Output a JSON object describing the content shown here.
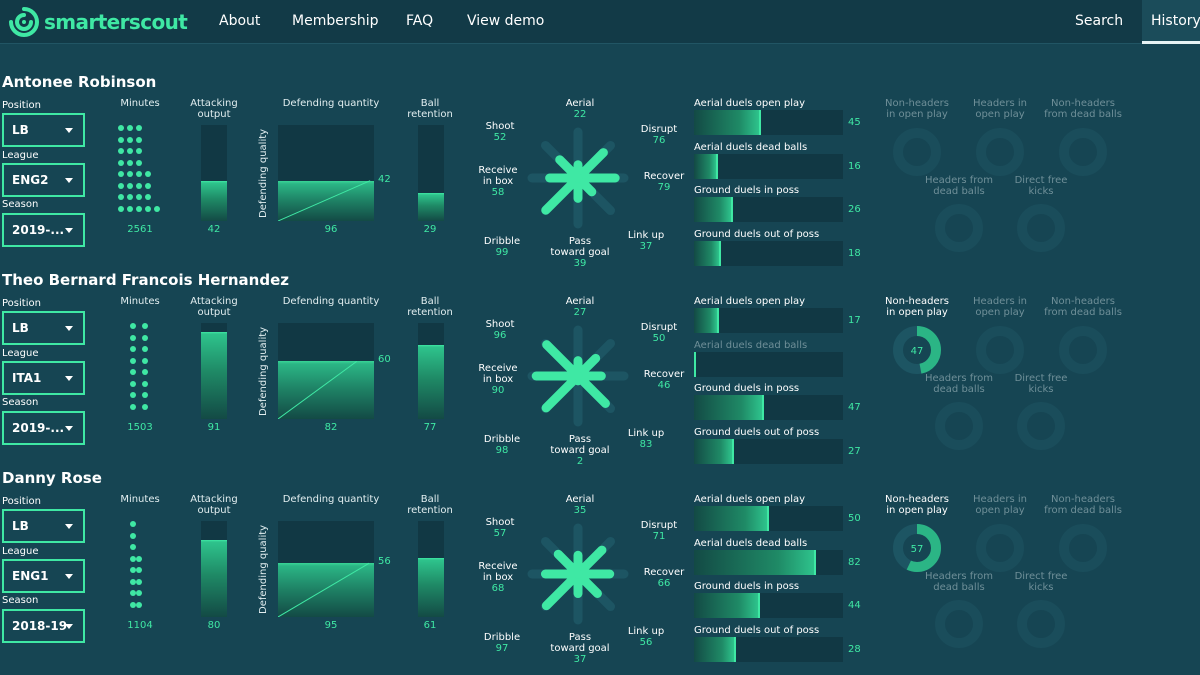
{
  "brand": {
    "name": "smarterscout",
    "accent": "#3fe8a4"
  },
  "nav": {
    "about": "About",
    "membership": "Membership",
    "faq": "FAQ",
    "demo": "View demo",
    "search": "Search",
    "history": "History"
  },
  "labels": {
    "position": "Position",
    "league": "League",
    "season": "Season",
    "minutes": "Minutes",
    "attacking_output_1": "Attacking",
    "attacking_output_2": "output",
    "defending_quantity": "Defending quantity",
    "defending_quality": "Defending quality",
    "ball_retention_1": "Ball",
    "ball_retention_2": "retention",
    "aerial": "Aerial",
    "shoot": "Shoot",
    "disrupt": "Disrupt",
    "receive_1": "Receive",
    "receive_2": "in box",
    "recover": "Recover",
    "dribble": "Dribble",
    "link_up": "Link up",
    "pass_1": "Pass",
    "pass_2": "toward goal",
    "aerial_open": "Aerial duels open play",
    "aerial_dead": "Aerial duels dead balls",
    "ground_in": "Ground duels in poss",
    "ground_out": "Ground duels out of poss",
    "nh_open_1": "Non-headers",
    "nh_open_2": "in open play",
    "h_open_1": "Headers in",
    "h_open_2": "open play",
    "nh_dead_1": "Non-headers",
    "nh_dead_2": "from dead balls",
    "h_dead_1": "Headers from",
    "h_dead_2": "dead balls",
    "dfk_1": "Direct free",
    "dfk_2": "kicks"
  },
  "players": [
    {
      "name": "Antonee Robinson",
      "position": "LB",
      "league": "ENG2",
      "season": "2019-...",
      "minutes": "2561",
      "attacking_output": 42,
      "defending_quantity": 96,
      "defending_quality": 42,
      "ball_retention": 29,
      "aerial": 22,
      "shoot": 52,
      "disrupt": 76,
      "receive": 58,
      "recover": 79,
      "dribble": 99,
      "link_up": 37,
      "pass": 39,
      "aerial_open": 45,
      "aerial_dead": 16,
      "ground_in": 26,
      "ground_out": 18,
      "aerial_dead_active": true,
      "nh_open": "",
      "nh_open_active": false
    },
    {
      "name": "Theo Bernard Francois Hernandez",
      "position": "LB",
      "league": "ITA1",
      "season": "2019-...",
      "minutes": "1503",
      "attacking_output": 91,
      "defending_quantity": 82,
      "defending_quality": 60,
      "ball_retention": 77,
      "aerial": 27,
      "shoot": 96,
      "disrupt": 50,
      "receive": 90,
      "recover": 46,
      "dribble": 98,
      "link_up": 83,
      "pass": 2,
      "aerial_open": 17,
      "aerial_dead": 0,
      "ground_in": 47,
      "ground_out": 27,
      "aerial_dead_active": false,
      "nh_open": "47",
      "nh_open_active": true
    },
    {
      "name": "Danny Rose",
      "position": "LB",
      "league": "ENG1",
      "season": "2018-19",
      "minutes": "1104",
      "attacking_output": 80,
      "defending_quantity": 95,
      "defending_quality": 56,
      "ball_retention": 61,
      "aerial": 35,
      "shoot": 57,
      "disrupt": 71,
      "receive": 68,
      "recover": 66,
      "dribble": 97,
      "link_up": 56,
      "pass": 37,
      "aerial_open": 50,
      "aerial_dead": 82,
      "ground_in": 44,
      "ground_out": 28,
      "aerial_dead_active": true,
      "nh_open": "57",
      "nh_open_active": true
    }
  ]
}
